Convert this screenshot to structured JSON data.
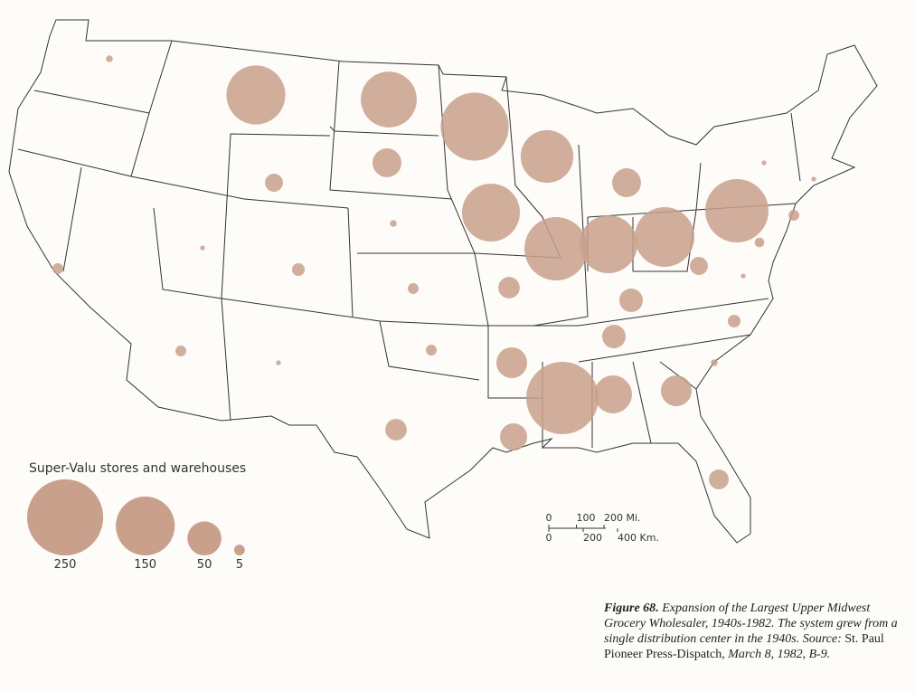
{
  "map": {
    "circles": {
      "values": [
        2,
        150,
        135,
        200,
        120,
        36,
        14,
        36,
        145,
        2,
        173,
        145,
        154,
        173,
        1,
        1,
        5,
        4,
        14,
        1,
        5,
        1,
        7,
        5,
        20,
        24,
        7,
        24,
        5,
        1,
        5,
        41,
        2,
        226,
        62,
        41,
        20,
        32,
        17
      ]
    },
    "legend": {
      "title": "Super-Valu stores and warehouses",
      "values": [
        250,
        150,
        50,
        5
      ]
    },
    "scale": {
      "miles": [
        0,
        100,
        {
          "value": 200,
          "label": "200 Mi."
        }
      ],
      "km": [
        0,
        200,
        {
          "value": 400,
          "label": "400 Km."
        }
      ]
    },
    "caption": {
      "figure": "Figure 68.",
      "text": "Expansion of the Largest Upper Midwest Grocery Wholesaler, 1940s-1982. The system grew from a single distribution center in the 1940s.",
      "source_label": "Source:",
      "source": "St. Paul Pioneer Press-Dispatch,",
      "date": "March 8, 1982, B-9."
    }
  }
}
